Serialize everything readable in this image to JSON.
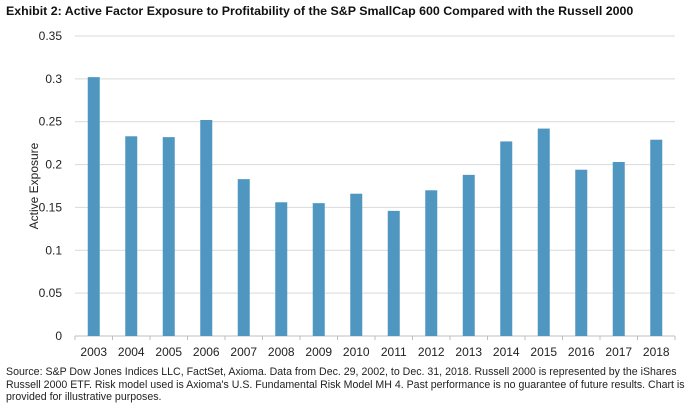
{
  "chart_data": {
    "type": "bar",
    "title": "Exhibit 2: Active Factor Exposure to Profitability of the S&P SmallCap 600 Compared with the Russell 2000",
    "xlabel": "",
    "ylabel": "Active Exposure",
    "ylim": [
      0,
      0.35
    ],
    "yticks": [
      "0",
      "0.05",
      "0.1",
      "0.15",
      "0.2",
      "0.25",
      "0.3",
      "0.35"
    ],
    "grid": true,
    "categories": [
      "2003",
      "2004",
      "2005",
      "2006",
      "2007",
      "2008",
      "2009",
      "2010",
      "2011",
      "2012",
      "2013",
      "2014",
      "2015",
      "2016",
      "2017",
      "2018"
    ],
    "values": [
      0.302,
      0.233,
      0.232,
      0.252,
      0.183,
      0.156,
      0.155,
      0.166,
      0.146,
      0.17,
      0.188,
      0.227,
      0.242,
      0.194,
      0.203,
      0.229
    ],
    "bar_color": "#4f97c0",
    "source": "Source: S&P Dow Jones Indices LLC, FactSet, Axioma. Data from Dec. 29, 2002, to Dec. 31, 2018. Russell 2000 is represented by the iShares Russell 2000 ETF. Risk model used is Axioma's U.S. Fundamental Risk Model MH 4. Past performance is no guarantee of future results. Chart is provided for illustrative purposes."
  }
}
